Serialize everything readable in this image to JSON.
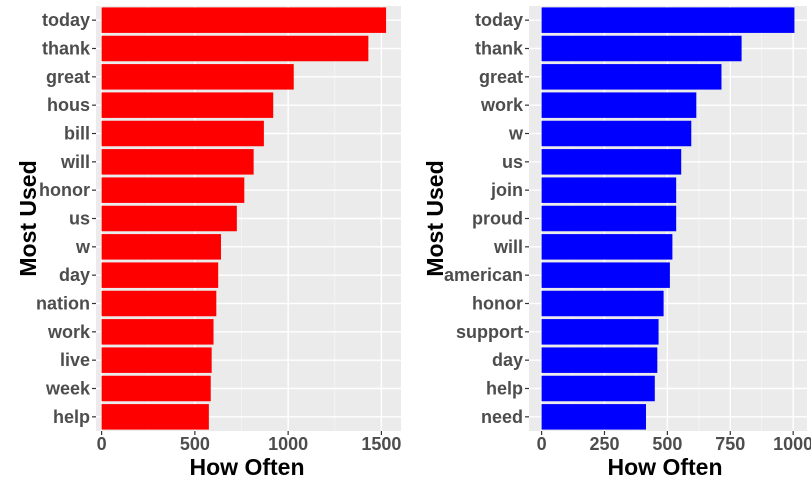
{
  "chart_data": [
    {
      "type": "bar",
      "orientation": "horizontal",
      "categories": [
        "today",
        "thank",
        "great",
        "hous",
        "bill",
        "will",
        "honor",
        "us",
        "w",
        "day",
        "nation",
        "work",
        "live",
        "week",
        "help"
      ],
      "values": [
        1525,
        1430,
        1030,
        920,
        870,
        815,
        765,
        725,
        640,
        625,
        615,
        600,
        590,
        585,
        575
      ],
      "xlabel": "How Often",
      "ylabel": "Most Used",
      "xticks": [
        "0",
        "500",
        "1000",
        "1500"
      ],
      "xtick_values": [
        0,
        500,
        1000,
        1500
      ],
      "xlim": [
        -30,
        1605
      ],
      "color": "#ff0000",
      "grid": true
    },
    {
      "type": "bar",
      "orientation": "horizontal",
      "categories": [
        "today",
        "thank",
        "great",
        "work",
        "w",
        "us",
        "join",
        "proud",
        "will",
        "american",
        "honor",
        "support",
        "day",
        "help",
        "need"
      ],
      "values": [
        1005,
        795,
        715,
        615,
        595,
        555,
        535,
        535,
        520,
        510,
        485,
        465,
        460,
        450,
        415
      ],
      "xlabel": "How Often",
      "ylabel": "Most Used",
      "xticks": [
        "0",
        "250",
        "500",
        "750",
        "1000"
      ],
      "xtick_values": [
        0,
        250,
        500,
        750,
        1000
      ],
      "xlim": [
        -50,
        1055
      ],
      "color": "#0000ff",
      "grid": true
    }
  ]
}
